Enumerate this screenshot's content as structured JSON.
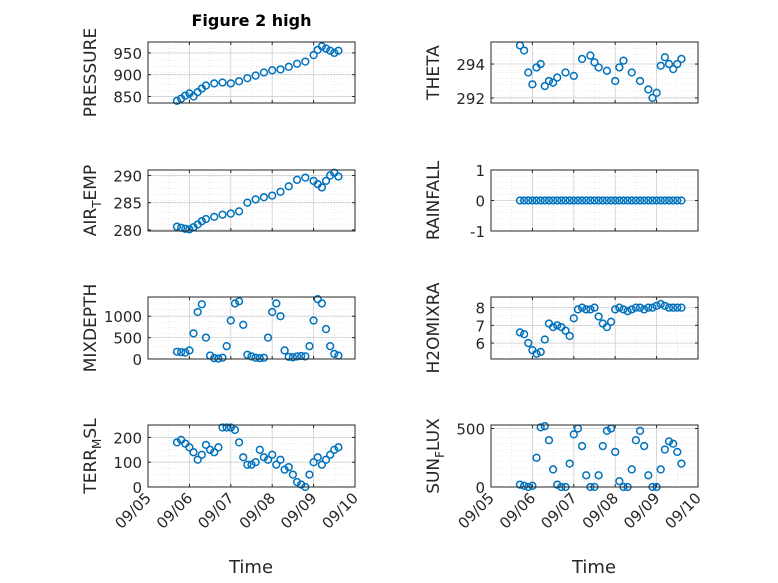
{
  "figure": {
    "title": "Figure 2 high"
  },
  "chart_data": [
    {
      "type": "scatter",
      "title": "Figure 2 high",
      "xlabel": "",
      "ylabel": "PRESSURE",
      "ylim": [
        835,
        975
      ],
      "yticks": [
        850,
        900,
        950
      ],
      "xlim": [
        0,
        5
      ],
      "show_xticklabels": false,
      "x": [
        0.7,
        0.8,
        0.9,
        1.0,
        1.1,
        1.2,
        1.3,
        1.4,
        1.6,
        1.8,
        2.0,
        2.2,
        2.4,
        2.6,
        2.8,
        3.0,
        3.2,
        3.4,
        3.6,
        3.8,
        4.0,
        4.1,
        4.2,
        4.3,
        4.4,
        4.5,
        4.6
      ],
      "y": [
        840,
        845,
        852,
        857,
        850,
        860,
        868,
        875,
        880,
        882,
        880,
        885,
        892,
        898,
        905,
        910,
        912,
        918,
        925,
        930,
        945,
        957,
        965,
        960,
        955,
        950,
        955
      ]
    },
    {
      "type": "scatter",
      "xlabel": "",
      "ylabel": "THETA",
      "ylim": [
        291.7,
        295.3
      ],
      "yticks": [
        292,
        294
      ],
      "xlim": [
        0,
        5
      ],
      "show_xticklabels": false,
      "x": [
        0.7,
        0.8,
        0.9,
        1.0,
        1.1,
        1.2,
        1.3,
        1.4,
        1.5,
        1.6,
        1.8,
        2.0,
        2.2,
        2.4,
        2.5,
        2.6,
        2.8,
        3.0,
        3.1,
        3.2,
        3.4,
        3.6,
        3.8,
        3.9,
        4.0,
        4.1,
        4.2,
        4.3,
        4.4,
        4.5,
        4.6
      ],
      "y": [
        295.1,
        294.8,
        293.5,
        292.8,
        293.8,
        294.0,
        292.7,
        293.0,
        292.9,
        293.2,
        293.5,
        293.3,
        294.3,
        294.5,
        294.1,
        293.8,
        293.6,
        293.0,
        293.8,
        294.2,
        293.5,
        293.0,
        292.5,
        292.0,
        292.3,
        293.9,
        294.4,
        294.0,
        293.7,
        294.0,
        294.3
      ]
    },
    {
      "type": "scatter",
      "xlabel": "",
      "ylabel": "AIR_TEMP",
      "ylim": [
        279.8,
        291.0
      ],
      "yticks": [
        280,
        285,
        290
      ],
      "xlim": [
        0,
        5
      ],
      "show_xticklabels": false,
      "x": [
        0.7,
        0.8,
        0.9,
        1.0,
        1.1,
        1.2,
        1.3,
        1.4,
        1.6,
        1.8,
        2.0,
        2.2,
        2.4,
        2.6,
        2.8,
        3.0,
        3.2,
        3.4,
        3.6,
        3.8,
        4.0,
        4.1,
        4.2,
        4.3,
        4.4,
        4.5,
        4.6
      ],
      "y": [
        280.6,
        280.4,
        280.2,
        280.1,
        280.5,
        281.0,
        281.6,
        282.0,
        282.4,
        282.8,
        283.0,
        283.4,
        285.0,
        285.6,
        286.0,
        286.3,
        287.0,
        288.0,
        289.2,
        289.6,
        289.0,
        288.4,
        287.8,
        289.0,
        290.0,
        290.5,
        289.8
      ]
    },
    {
      "type": "scatter",
      "xlabel": "",
      "ylabel": "RAINFALL",
      "ylim": [
        -1,
        1
      ],
      "yticks": [
        -1,
        0,
        1
      ],
      "xlim": [
        0,
        5
      ],
      "show_xticklabels": false,
      "x": [
        0.7,
        0.8,
        0.9,
        1.0,
        1.1,
        1.2,
        1.3,
        1.4,
        1.5,
        1.6,
        1.7,
        1.8,
        1.9,
        2.0,
        2.1,
        2.2,
        2.3,
        2.4,
        2.5,
        2.6,
        2.7,
        2.8,
        2.9,
        3.0,
        3.1,
        3.2,
        3.3,
        3.4,
        3.5,
        3.6,
        3.7,
        3.8,
        3.9,
        4.0,
        4.1,
        4.2,
        4.3,
        4.4,
        4.5,
        4.6
      ],
      "y": [
        0,
        0,
        0,
        0,
        0,
        0,
        0,
        0,
        0,
        0,
        0,
        0,
        0,
        0,
        0,
        0,
        0,
        0,
        0,
        0,
        0,
        0,
        0,
        0,
        0,
        0,
        0,
        0,
        0,
        0,
        0,
        0,
        0,
        0,
        0,
        0,
        0,
        0,
        0,
        0
      ]
    },
    {
      "type": "scatter",
      "xlabel": "",
      "ylabel": "MIXDEPTH",
      "ylim": [
        0,
        1450
      ],
      "yticks": [
        0,
        500,
        1000
      ],
      "xlim": [
        0,
        5
      ],
      "show_xticklabels": false,
      "x": [
        0.7,
        0.8,
        0.9,
        1.0,
        1.1,
        1.2,
        1.3,
        1.4,
        1.5,
        1.6,
        1.7,
        1.8,
        1.9,
        2.0,
        2.1,
        2.2,
        2.3,
        2.4,
        2.5,
        2.6,
        2.7,
        2.8,
        2.9,
        3.0,
        3.1,
        3.2,
        3.3,
        3.4,
        3.5,
        3.6,
        3.7,
        3.8,
        3.9,
        4.0,
        4.1,
        4.2,
        4.3,
        4.4,
        4.5,
        4.6
      ],
      "y": [
        170,
        160,
        150,
        200,
        600,
        1100,
        1280,
        500,
        80,
        20,
        10,
        30,
        300,
        900,
        1300,
        1350,
        800,
        100,
        60,
        30,
        20,
        30,
        500,
        1100,
        1300,
        1000,
        200,
        50,
        40,
        60,
        70,
        60,
        300,
        900,
        1400,
        1300,
        700,
        300,
        120,
        80
      ]
    },
    {
      "type": "scatter",
      "xlabel": "",
      "ylabel": "H2OMIXRA",
      "ylim": [
        5.1,
        8.6
      ],
      "yticks": [
        6,
        7,
        8
      ],
      "xlim": [
        0,
        5
      ],
      "show_xticklabels": false,
      "x": [
        0.7,
        0.8,
        0.9,
        1.0,
        1.1,
        1.2,
        1.3,
        1.4,
        1.5,
        1.6,
        1.7,
        1.8,
        1.9,
        2.0,
        2.1,
        2.2,
        2.3,
        2.4,
        2.5,
        2.6,
        2.7,
        2.8,
        2.9,
        3.0,
        3.1,
        3.2,
        3.3,
        3.4,
        3.5,
        3.6,
        3.7,
        3.8,
        3.9,
        4.0,
        4.1,
        4.2,
        4.3,
        4.4,
        4.5,
        4.6
      ],
      "y": [
        6.6,
        6.5,
        6.0,
        5.6,
        5.4,
        5.5,
        6.2,
        7.1,
        6.9,
        7.0,
        6.9,
        6.7,
        6.4,
        7.4,
        7.9,
        8.0,
        7.9,
        7.9,
        8.0,
        7.5,
        7.1,
        6.9,
        7.2,
        7.9,
        8.0,
        7.9,
        7.8,
        7.9,
        8.0,
        8.0,
        7.9,
        8.0,
        8.0,
        8.1,
        8.2,
        8.1,
        8.0,
        8.0,
        8.0,
        8.0
      ]
    },
    {
      "type": "scatter",
      "xlabel": "Time",
      "ylabel": "TERR_MSL",
      "ylim": [
        0,
        250
      ],
      "yticks": [
        0,
        100,
        200
      ],
      "xlim": [
        0,
        5
      ],
      "xticks": [
        0,
        1,
        2,
        3,
        4,
        5
      ],
      "xticklabels": [
        "09/05",
        "09/06",
        "09/07",
        "09/08",
        "09/09",
        "09/10"
      ],
      "x": [
        0.7,
        0.8,
        0.9,
        1.0,
        1.1,
        1.2,
        1.3,
        1.4,
        1.5,
        1.6,
        1.7,
        1.8,
        1.9,
        2.0,
        2.1,
        2.2,
        2.3,
        2.4,
        2.5,
        2.6,
        2.7,
        2.8,
        2.9,
        3.0,
        3.1,
        3.2,
        3.3,
        3.4,
        3.5,
        3.6,
        3.7,
        3.8,
        3.9,
        4.0,
        4.1,
        4.2,
        4.3,
        4.4,
        4.5,
        4.6
      ],
      "y": [
        180,
        190,
        175,
        160,
        140,
        110,
        130,
        170,
        150,
        140,
        160,
        240,
        240,
        240,
        230,
        180,
        120,
        90,
        90,
        100,
        150,
        120,
        110,
        130,
        90,
        110,
        70,
        80,
        50,
        20,
        10,
        0,
        50,
        100,
        120,
        90,
        110,
        130,
        150,
        160
      ]
    },
    {
      "type": "scatter",
      "xlabel": "Time",
      "ylabel": "SUN_FLUX",
      "ylim": [
        0,
        530
      ],
      "yticks": [
        0,
        500
      ],
      "xlim": [
        0,
        5
      ],
      "xticks": [
        0,
        1,
        2,
        3,
        4,
        5
      ],
      "xticklabels": [
        "09/05",
        "09/06",
        "09/07",
        "09/08",
        "09/09",
        "09/10"
      ],
      "x": [
        0.7,
        0.8,
        0.9,
        1.0,
        1.1,
        1.2,
        1.3,
        1.4,
        1.5,
        1.6,
        1.7,
        1.8,
        1.9,
        2.0,
        2.1,
        2.2,
        2.3,
        2.4,
        2.5,
        2.6,
        2.7,
        2.8,
        2.9,
        3.0,
        3.1,
        3.2,
        3.3,
        3.4,
        3.5,
        3.6,
        3.7,
        3.8,
        3.9,
        4.0,
        4.1,
        4.2,
        4.3,
        4.4,
        4.5,
        4.6
      ],
      "y": [
        20,
        10,
        0,
        10,
        250,
        510,
        520,
        400,
        150,
        20,
        0,
        0,
        200,
        450,
        500,
        350,
        100,
        0,
        0,
        100,
        350,
        480,
        500,
        300,
        50,
        0,
        0,
        150,
        400,
        480,
        350,
        100,
        0,
        0,
        150,
        320,
        390,
        370,
        300,
        200
      ]
    }
  ]
}
